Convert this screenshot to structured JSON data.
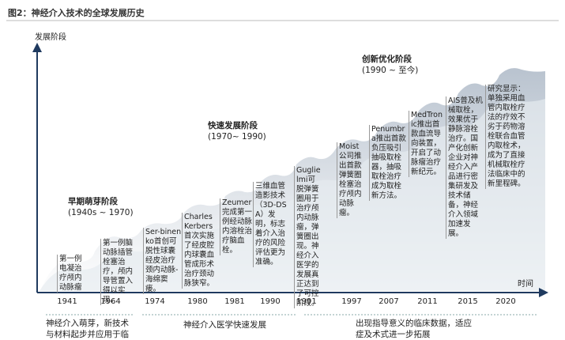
{
  "title": "图2：神经介入技术的全球发展历史",
  "axes": {
    "y_label": "发展阶段",
    "x_label": "时间"
  },
  "stages": [
    {
      "name": "早期萌芽阶段",
      "range": "(1940s ~ 1970)"
    },
    {
      "name": "快速发展阶段",
      "range": "(1970~ 1990)"
    },
    {
      "name": "创新优化阶段",
      "range": "(1990 ~ 至今)"
    }
  ],
  "events": [
    {
      "year": "1941",
      "text": "第一例电凝治疗颅内动脉瘤"
    },
    {
      "year": "1964",
      "text": "第一例脑动脉插管栓塞治疗，颅内导管置入得以实现。"
    },
    {
      "year": "1974",
      "text": "Ser-binenko首创可脱性球囊经皮治疗颈内动脉-海绵窦瘘。"
    },
    {
      "year": "1980",
      "text": "Charles Kerbers首次实施了经皮腔内球囊血管成形术治疗颈动脉狭窄。"
    },
    {
      "year": "1981",
      "text": "Zeumer完成第一例经动脉内溶栓治疗脑血栓。"
    },
    {
      "year": "1990",
      "text": "三维血管造影技术（3D-DSA）发明，标志着介入治疗的风险评估更为准确。"
    },
    {
      "year": "1991",
      "text": "Guglielmi可脱弹簧圈用于治疗颅内动脉瘤，弹簧圈出现。神经介入医学的发展真正达到了可控阶段。"
    },
    {
      "year": "1997",
      "text": "Moist公司推出首款弹簧圈栓塞治疗颅内动脉瘤。"
    },
    {
      "year": "2007",
      "text": "Penumbra推出首款负压吸引抽吸取栓器，抽吸取栓治疗成为取栓新方法。"
    },
    {
      "year": "2011",
      "text": "MedTronic推出首款血流导向装置，开启了动脉瘤治疗新纪元。"
    },
    {
      "year": "2015",
      "text": "AIS普及机械取栓，效果优于静脉溶栓治疗。国产化创新企业对神经介入产品进行密集研发及技术储备，神经介入领域加速发展。"
    },
    {
      "year": "2020",
      "text": "研究显示：单独采用血管内取栓疗法的疗效不劣于药物溶栓联合血管内取栓术，成为了直接机械取栓疗法临床中的新里程碑。"
    }
  ],
  "periods": [
    "神经介入萌芽，新技术与材料起步并应用于临床",
    "神经介入医学快速发展",
    "出现指导意义的临床数据，适应症及术式进一步拓展"
  ]
}
